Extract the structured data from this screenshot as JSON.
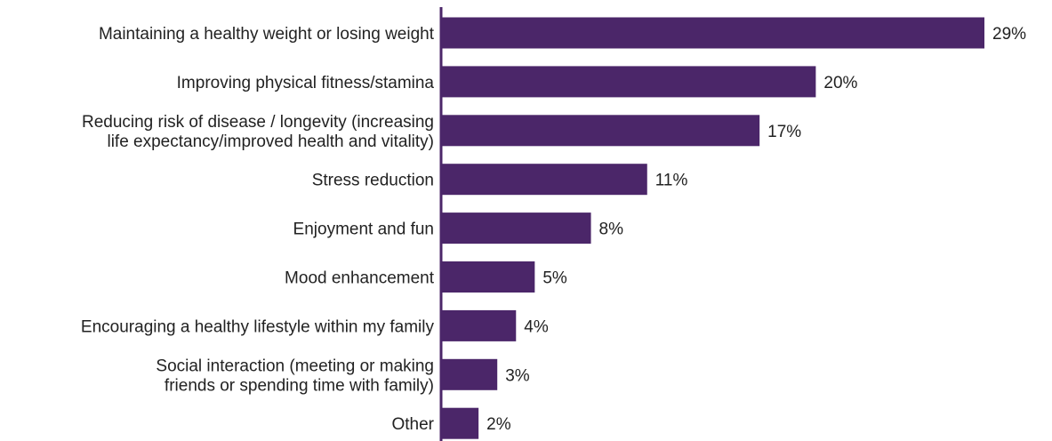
{
  "chart_data": {
    "type": "bar",
    "orientation": "horizontal",
    "categories": [
      [
        "Maintaining a healthy weight or losing weight"
      ],
      [
        "Improving physical fitness/stamina"
      ],
      [
        "Reducing risk of disease / longevity (increasing",
        "life expectancy/improved health and vitality)"
      ],
      [
        "Stress reduction"
      ],
      [
        "Enjoyment and fun"
      ],
      [
        "Mood enhancement"
      ],
      [
        "Encouraging a healthy lifestyle within my family"
      ],
      [
        "Social interaction (meeting or making",
        "friends or spending time with family)"
      ],
      [
        "Other"
      ]
    ],
    "values": [
      29,
      20,
      17,
      11,
      8,
      5,
      4,
      3,
      2
    ],
    "value_labels": [
      "29%",
      "20%",
      "17%",
      "11%",
      "8%",
      "5%",
      "4%",
      "3%",
      "2%"
    ],
    "title": "",
    "xlabel": "",
    "ylabel": "",
    "xlim": [
      0,
      29
    ],
    "grid": false,
    "legend": "none",
    "colors": {
      "bar": "#4b2669",
      "axis": "#4b2669",
      "text": "#222222"
    }
  }
}
